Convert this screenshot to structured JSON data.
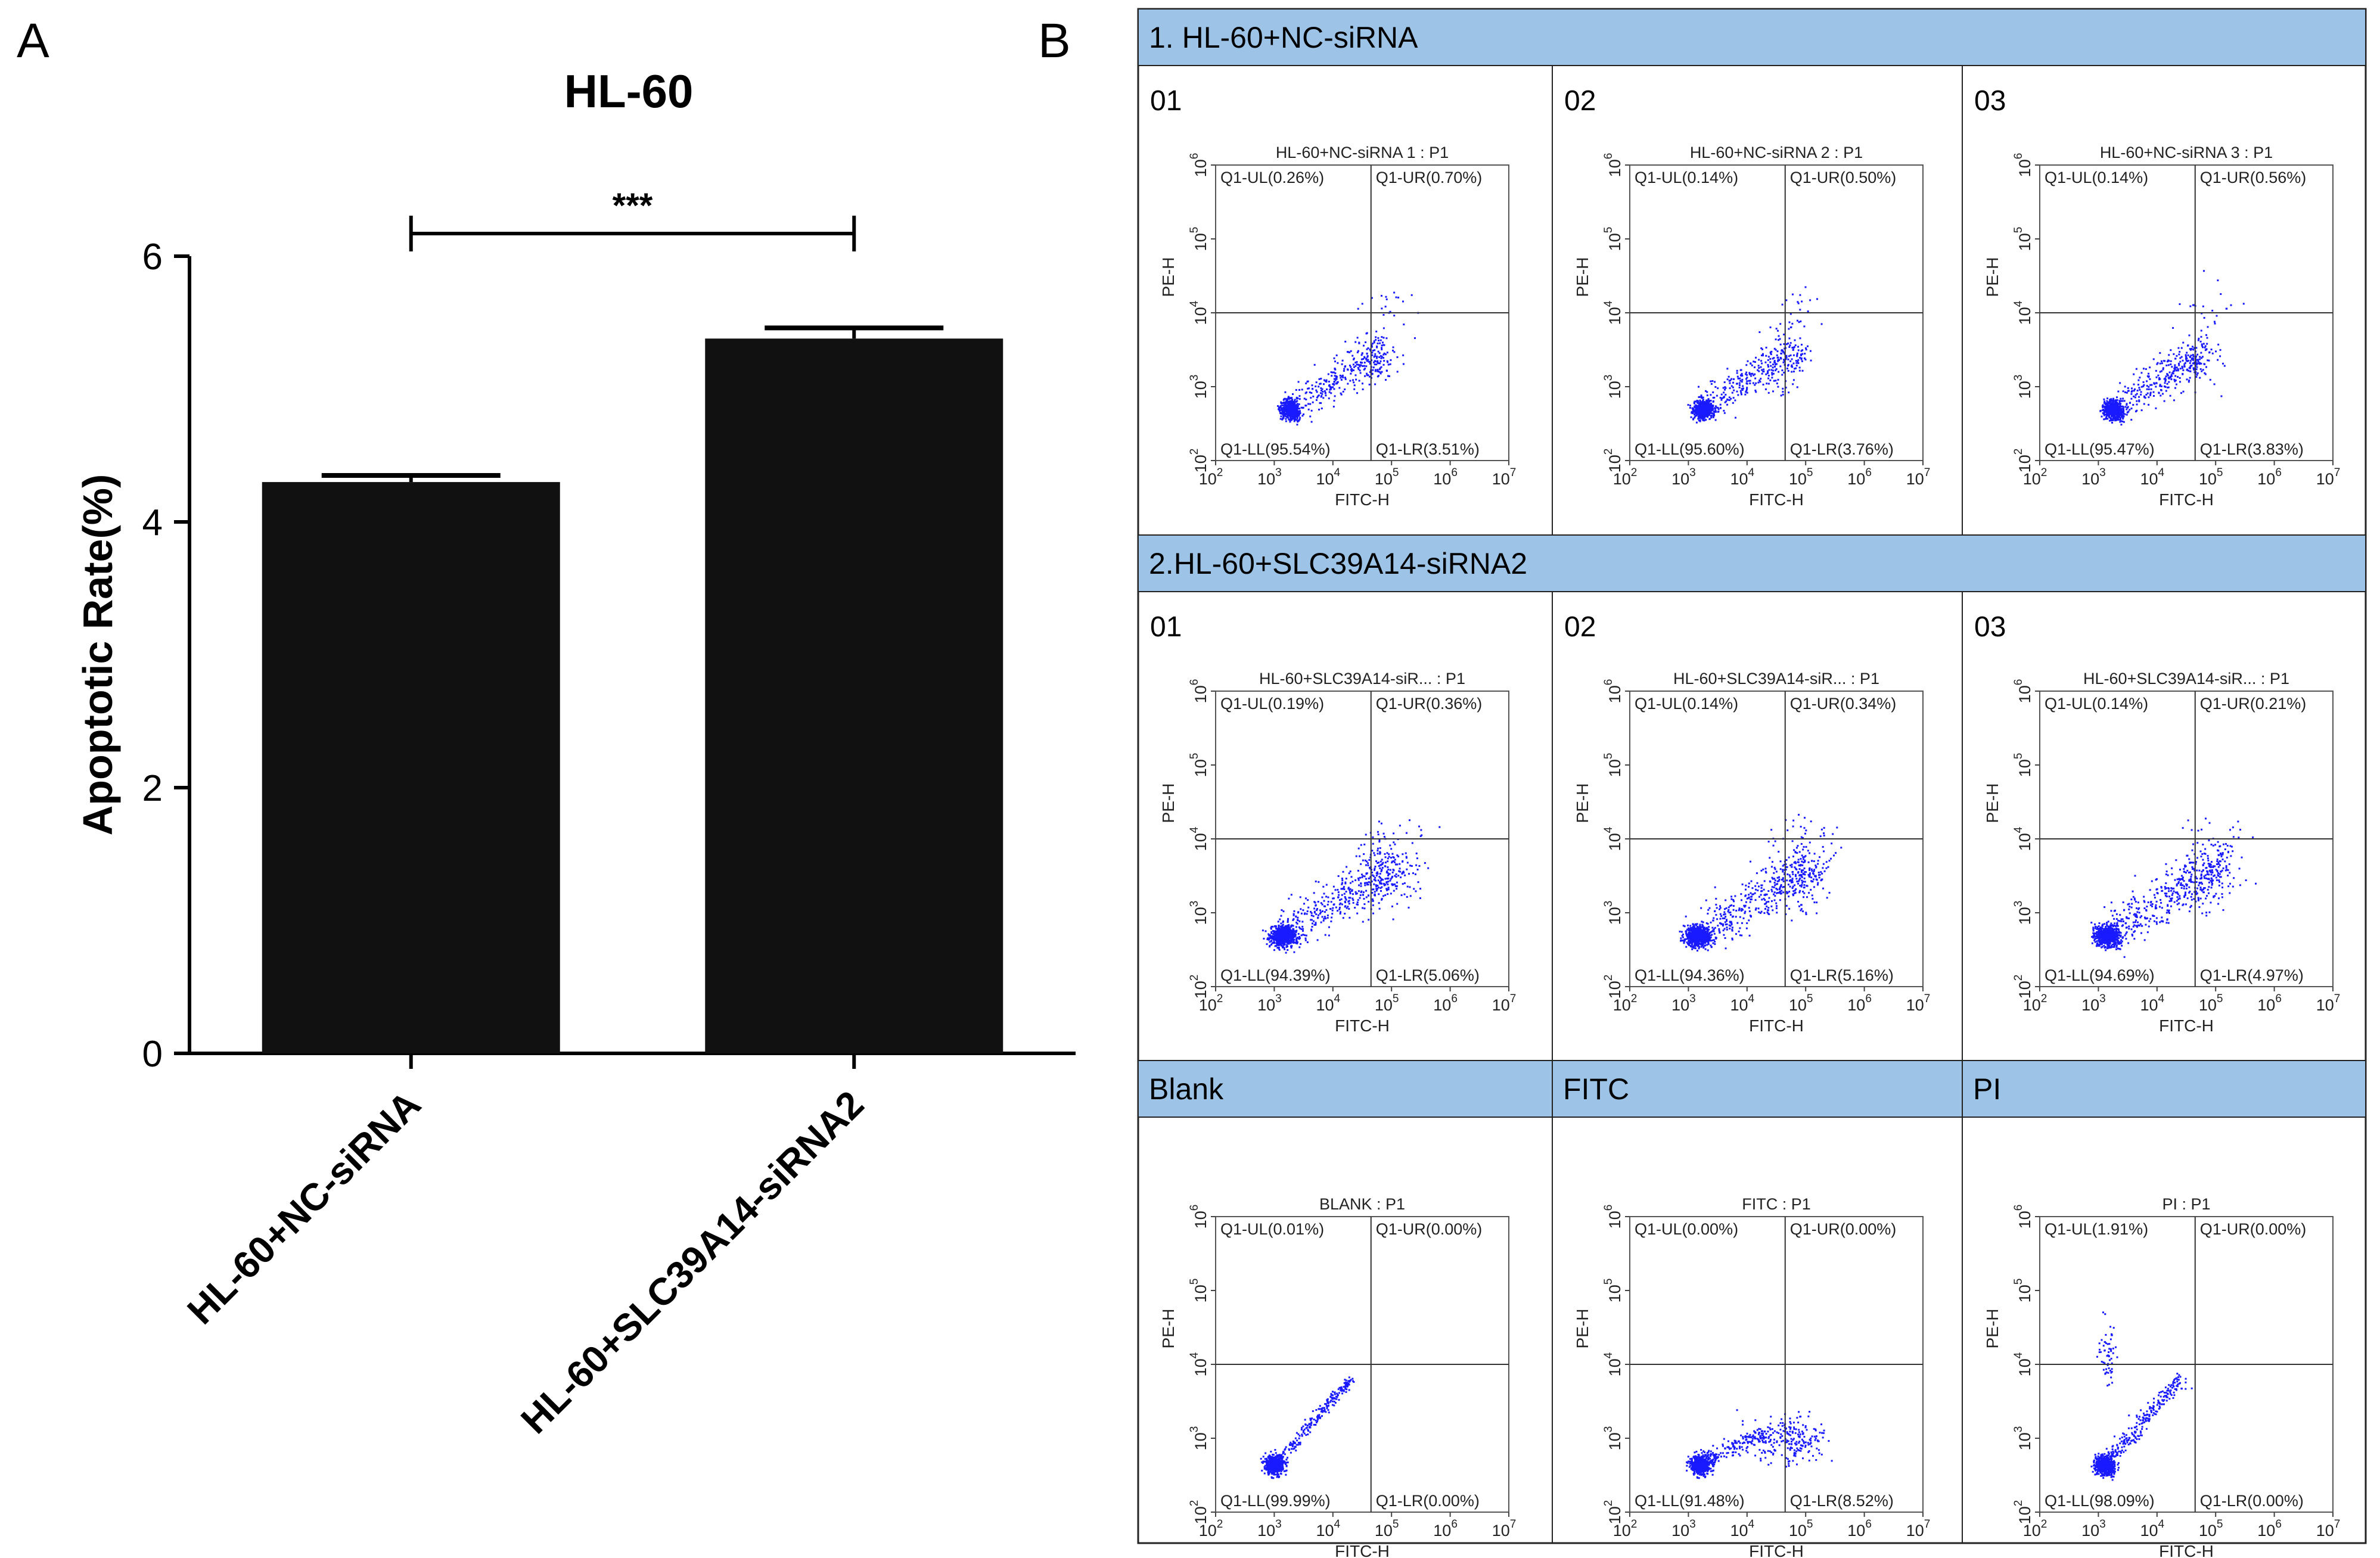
{
  "panel_a": {
    "letter": "A",
    "chart_data": {
      "type": "bar",
      "title": "HL-60",
      "ylabel": "Apoptotic Rate(%)",
      "xlabel": "",
      "ylim": [
        0,
        6
      ],
      "yticks": [
        0,
        2,
        4,
        6
      ],
      "categories": [
        "HL-60+NC-siRNA",
        "HL-60+SLC39A14-siRNA2"
      ],
      "values": [
        4.3,
        5.38
      ],
      "errors": [
        0.05,
        0.08
      ],
      "significance": {
        "label": "***",
        "between": [
          0,
          1
        ]
      },
      "bar_color": "#111111",
      "grid": false
    }
  },
  "panel_b": {
    "letter": "B",
    "header_color": "#9dc3e6",
    "x_axis_label": "FITC-H",
    "y_axis_label": "PE-H",
    "tick_exponents": [
      "2",
      "3",
      "4",
      "5",
      "6",
      "7"
    ],
    "point_color": "#1a1aff",
    "rows": [
      {
        "header": "1. HL-60+NC-siRNA",
        "cells": [
          {
            "label": "01",
            "plot": {
              "title": "HL-60+NC-siRNA 1 : P1",
              "ul": "Q1-UL(0.26%)",
              "ur": "Q1-UR(0.70%)",
              "ll": "Q1-LL(95.54%)",
              "lr": "Q1-LR(3.51%)",
              "pattern": "sample"
            }
          },
          {
            "label": "02",
            "plot": {
              "title": "HL-60+NC-siRNA 2 : P1",
              "ul": "Q1-UL(0.14%)",
              "ur": "Q1-UR(0.50%)",
              "ll": "Q1-LL(95.60%)",
              "lr": "Q1-LR(3.76%)",
              "pattern": "sample"
            }
          },
          {
            "label": "03",
            "plot": {
              "title": "HL-60+NC-siRNA 3 : P1",
              "ul": "Q1-UL(0.14%)",
              "ur": "Q1-UR(0.56%)",
              "ll": "Q1-LL(95.47%)",
              "lr": "Q1-LR(3.83%)",
              "pattern": "sample"
            }
          }
        ]
      },
      {
        "header": "2.HL-60+SLC39A14-siRNA2",
        "cells": [
          {
            "label": "01",
            "plot": {
              "title": "HL-60+SLC39A14-siR... : P1",
              "ul": "Q1-UL(0.19%)",
              "ur": "Q1-UR(0.36%)",
              "ll": "Q1-LL(94.39%)",
              "lr": "Q1-LR(5.06%)",
              "pattern": "sample2"
            }
          },
          {
            "label": "02",
            "plot": {
              "title": "HL-60+SLC39A14-siR... : P1",
              "ul": "Q1-UL(0.14%)",
              "ur": "Q1-UR(0.34%)",
              "ll": "Q1-LL(94.36%)",
              "lr": "Q1-LR(5.16%)",
              "pattern": "sample2"
            }
          },
          {
            "label": "03",
            "plot": {
              "title": "HL-60+SLC39A14-siR... : P1",
              "ul": "Q1-UL(0.14%)",
              "ur": "Q1-UR(0.21%)",
              "ll": "Q1-LL(94.69%)",
              "lr": "Q1-LR(4.97%)",
              "pattern": "sample2"
            }
          }
        ]
      },
      {
        "header": "",
        "cells": [
          {
            "label": "Blank",
            "plot": {
              "title": "BLANK : P1",
              "ul": "Q1-UL(0.01%)",
              "ur": "Q1-UR(0.00%)",
              "ll": "Q1-LL(99.99%)",
              "lr": "Q1-LR(0.00%)",
              "pattern": "blank"
            }
          },
          {
            "label": "FITC",
            "plot": {
              "title": "FITC : P1",
              "ul": "Q1-UL(0.00%)",
              "ur": "Q1-UR(0.00%)",
              "ll": "Q1-LL(91.48%)",
              "lr": "Q1-LR(8.52%)",
              "pattern": "fitc"
            }
          },
          {
            "label": "PI",
            "plot": {
              "title": "PI : P1",
              "ul": "Q1-UL(1.91%)",
              "ur": "Q1-UR(0.00%)",
              "ll": "Q1-LL(98.09%)",
              "lr": "Q1-LR(0.00%)",
              "pattern": "pi"
            }
          }
        ]
      }
    ]
  }
}
